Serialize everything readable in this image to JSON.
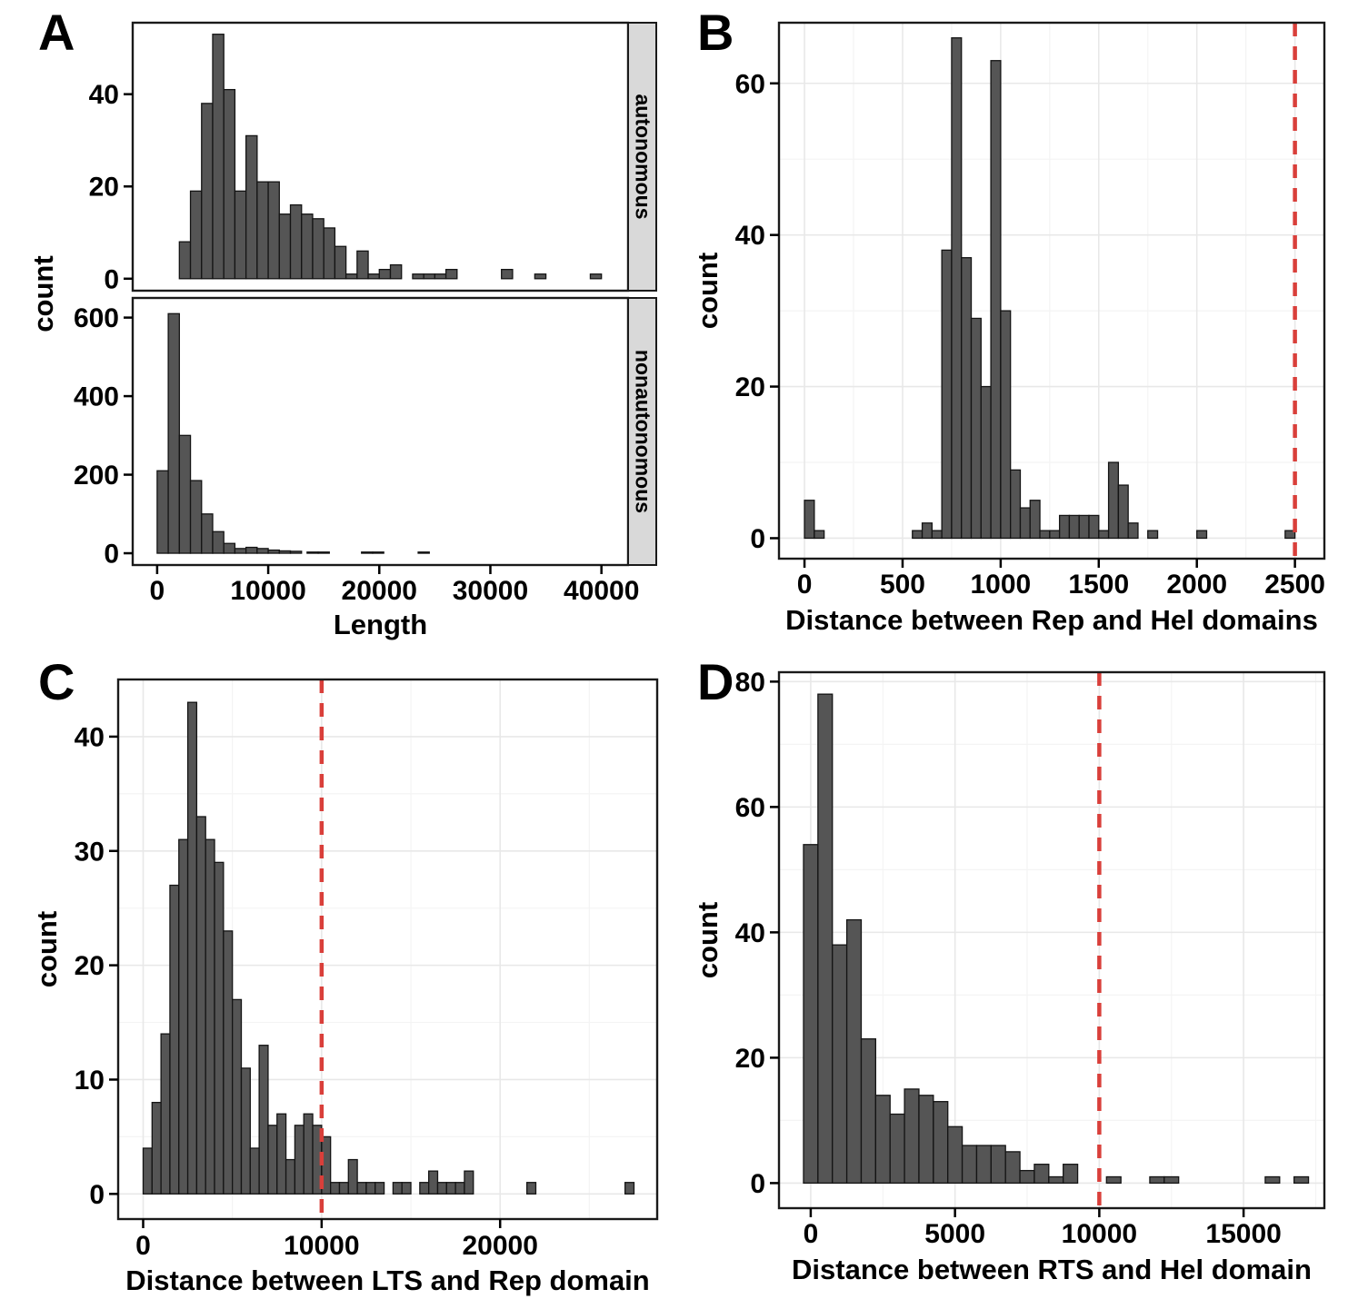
{
  "figure": {
    "background": "#FFFFFF",
    "styles": {
      "bar_fill": "#555555",
      "bar_stroke": "#141414",
      "vline_color": "#D93F3A",
      "grid_major": "#E8E8E8",
      "grid_minor": "#F4F4F4",
      "strip_bg": "#D9D9D9",
      "panel_border": "#1A1A1A",
      "text_color": "#000000"
    }
  },
  "chart_data": [
    {
      "type": "bar",
      "panel_label": "A",
      "title": "",
      "xlabel": "Length",
      "ylabel": "count",
      "xlim": [
        -2200,
        42400
      ],
      "xticks": [
        0,
        10000,
        20000,
        30000,
        40000
      ],
      "binwidth": 1000,
      "grid": false,
      "vline": null,
      "legend_position": "none",
      "facets": [
        {
          "label": "autonomous",
          "ylim": [
            -2.6,
            55.5
          ],
          "yticks": [
            0,
            20,
            40
          ],
          "bins": [
            [
              2000,
              8
            ],
            [
              3000,
              19
            ],
            [
              4000,
              38
            ],
            [
              5000,
              53
            ],
            [
              6000,
              41
            ],
            [
              7000,
              19
            ],
            [
              8000,
              31
            ],
            [
              9000,
              21
            ],
            [
              10000,
              21
            ],
            [
              11000,
              14
            ],
            [
              12000,
              16
            ],
            [
              13000,
              14
            ],
            [
              14000,
              13
            ],
            [
              15000,
              11
            ],
            [
              16000,
              7
            ],
            [
              17000,
              1
            ],
            [
              18000,
              6
            ],
            [
              19000,
              1
            ],
            [
              20000,
              2
            ],
            [
              21000,
              3
            ],
            [
              23000,
              1
            ],
            [
              24000,
              1
            ],
            [
              25000,
              1
            ],
            [
              26000,
              2
            ],
            [
              31000,
              2
            ],
            [
              34000,
              1
            ],
            [
              39000,
              1
            ]
          ]
        },
        {
          "label": "nonautonomous",
          "ylim": [
            -30,
            650
          ],
          "yticks": [
            0,
            200,
            400,
            600
          ],
          "bins": [
            [
              0,
              210
            ],
            [
              1000,
              610
            ],
            [
              2000,
              300
            ],
            [
              3000,
              185
            ],
            [
              4000,
              100
            ],
            [
              5000,
              55
            ],
            [
              6000,
              25
            ],
            [
              7000,
              12
            ],
            [
              8000,
              15
            ],
            [
              9000,
              12
            ],
            [
              10000,
              8
            ],
            [
              11000,
              6
            ],
            [
              12000,
              5
            ],
            [
              13500,
              3
            ],
            [
              14500,
              3
            ],
            [
              18400,
              3
            ],
            [
              19400,
              3
            ],
            [
              23500,
              3
            ]
          ]
        }
      ]
    },
    {
      "type": "bar",
      "panel_label": "B",
      "title": "",
      "xlabel": "Distance between Rep and Hel domains",
      "ylabel": "count",
      "xlim": [
        -130,
        2650
      ],
      "xticks": [
        0,
        500,
        1000,
        1500,
        2000,
        2500
      ],
      "binwidth": 50,
      "grid": true,
      "vline": 2500,
      "legend_position": "none",
      "facets": [
        {
          "label": null,
          "ylim": [
            -2.7,
            68
          ],
          "yticks": [
            0,
            20,
            40,
            60
          ],
          "bins": [
            [
              0,
              5
            ],
            [
              50,
              1
            ],
            [
              550,
              1
            ],
            [
              600,
              2
            ],
            [
              650,
              1
            ],
            [
              700,
              38
            ],
            [
              750,
              66
            ],
            [
              800,
              37
            ],
            [
              850,
              29
            ],
            [
              900,
              20
            ],
            [
              950,
              63
            ],
            [
              1000,
              30
            ],
            [
              1050,
              9
            ],
            [
              1100,
              4
            ],
            [
              1150,
              5
            ],
            [
              1200,
              1
            ],
            [
              1250,
              1
            ],
            [
              1300,
              3
            ],
            [
              1350,
              3
            ],
            [
              1400,
              3
            ],
            [
              1450,
              3
            ],
            [
              1500,
              1
            ],
            [
              1550,
              10
            ],
            [
              1600,
              7
            ],
            [
              1650,
              2
            ],
            [
              1750,
              1
            ],
            [
              2000,
              1
            ],
            [
              2450,
              1
            ]
          ]
        }
      ]
    },
    {
      "type": "bar",
      "panel_label": "C",
      "title": "",
      "xlabel": "Distance between LTS and Rep domain",
      "ylabel": "count",
      "xlim": [
        -1400,
        28800
      ],
      "xticks": [
        0,
        10000,
        20000
      ],
      "binwidth": 500,
      "grid": true,
      "vline": 10000,
      "legend_position": "none",
      "facets": [
        {
          "label": null,
          "ylim": [
            -2.2,
            45
          ],
          "yticks": [
            0,
            10,
            20,
            30,
            40
          ],
          "bins": [
            [
              0,
              4
            ],
            [
              500,
              8
            ],
            [
              1000,
              14
            ],
            [
              1500,
              27
            ],
            [
              2000,
              31
            ],
            [
              2500,
              43
            ],
            [
              3000,
              33
            ],
            [
              3500,
              31
            ],
            [
              4000,
              29
            ],
            [
              4500,
              23
            ],
            [
              5000,
              17
            ],
            [
              5500,
              11
            ],
            [
              6000,
              4
            ],
            [
              6500,
              13
            ],
            [
              7000,
              6
            ],
            [
              7500,
              7
            ],
            [
              8000,
              3
            ],
            [
              8500,
              6
            ],
            [
              9000,
              7
            ],
            [
              9500,
              6
            ],
            [
              10000,
              5
            ],
            [
              10500,
              1
            ],
            [
              11000,
              1
            ],
            [
              11500,
              3
            ],
            [
              12000,
              1
            ],
            [
              12500,
              1
            ],
            [
              13000,
              1
            ],
            [
              14000,
              1
            ],
            [
              14500,
              1
            ],
            [
              15500,
              1
            ],
            [
              16000,
              2
            ],
            [
              16500,
              1
            ],
            [
              17000,
              1
            ],
            [
              17500,
              1
            ],
            [
              18000,
              2
            ],
            [
              21500,
              1
            ],
            [
              27000,
              1
            ]
          ]
        }
      ]
    },
    {
      "type": "bar",
      "panel_label": "D",
      "title": "",
      "xlabel": "Distance between RTS and Hel domain",
      "ylabel": "count",
      "xlim": [
        -1100,
        17800
      ],
      "xticks": [
        0,
        5000,
        10000,
        15000
      ],
      "binwidth": 500,
      "grid": true,
      "vline": 10000,
      "legend_position": "none",
      "facets": [
        {
          "label": null,
          "ylim": [
            -4,
            81.5
          ],
          "yticks": [
            0,
            20,
            40,
            60,
            80
          ],
          "bins": [
            [
              -250,
              54
            ],
            [
              250,
              78
            ],
            [
              750,
              38
            ],
            [
              1250,
              42
            ],
            [
              1750,
              23
            ],
            [
              2250,
              14
            ],
            [
              2750,
              11
            ],
            [
              3250,
              15
            ],
            [
              3750,
              14
            ],
            [
              4250,
              13
            ],
            [
              4750,
              9
            ],
            [
              5250,
              6
            ],
            [
              5750,
              6
            ],
            [
              6250,
              6
            ],
            [
              6750,
              5
            ],
            [
              7250,
              2
            ],
            [
              7750,
              3
            ],
            [
              8250,
              1
            ],
            [
              8750,
              3
            ],
            [
              10250,
              1
            ],
            [
              11750,
              1
            ],
            [
              12250,
              1
            ],
            [
              15750,
              1
            ],
            [
              16750,
              1
            ]
          ]
        }
      ]
    }
  ]
}
